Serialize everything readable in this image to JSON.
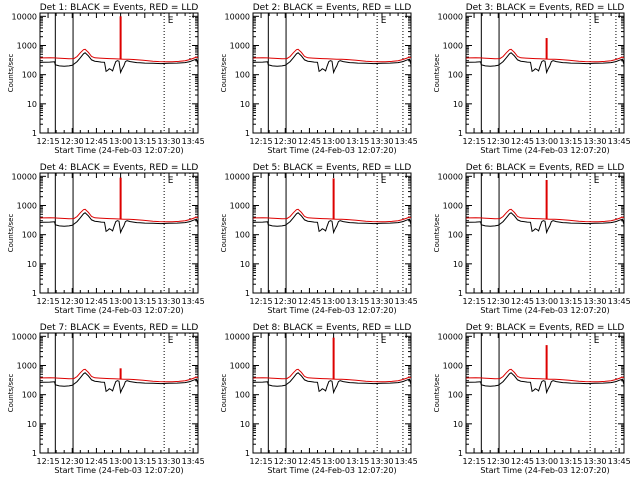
{
  "page": {
    "background": "#ffffff",
    "line_color": "#000000"
  },
  "chart_data": {
    "type": "line",
    "layout": "3x3 grid",
    "xlabel": "Start Time (24-Feb-03 12:07:20)",
    "ylabel": "Counts/sec",
    "x_ticks": [
      "12:15",
      "12:30",
      "12:45",
      "13:00",
      "13:15",
      "13:30",
      "13:45"
    ],
    "x_tick_minutes": [
      15,
      30,
      45,
      60,
      75,
      90,
      105
    ],
    "xlim_minutes": [
      10,
      108
    ],
    "y_ticks": [
      "1",
      "10",
      "100",
      "1000",
      "10000"
    ],
    "y_scale": "log",
    "ylim": [
      1,
      13000
    ],
    "solid_markers_minutes": [
      19.5,
      30.5
    ],
    "dotted_markers_minutes": [
      87,
      103
    ],
    "marker_label": "E",
    "marker_label_minutes": 91,
    "series_colors": {
      "BLACK": "#000000",
      "RED": "#dd0000"
    },
    "spike_minutes": 60,
    "panels": [
      {
        "title": "Det 1: BLACK = Events, RED = LLD",
        "spike_peak": 10000
      },
      {
        "title": "Det 2: BLACK = Events, RED = LLD",
        "spike_peak": null
      },
      {
        "title": "Det 3: BLACK = Events, RED = LLD",
        "spike_peak": 1800
      },
      {
        "title": "Det 4: BLACK = Events, RED = LLD",
        "spike_peak": 9000
      },
      {
        "title": "Det 5: BLACK = Events, RED = LLD",
        "spike_peak": 8500
      },
      {
        "title": "Det 6: BLACK = Events, RED = LLD",
        "spike_peak": 7500
      },
      {
        "title": "Det 7: BLACK = Events, RED = LLD",
        "spike_peak": 800
      },
      {
        "title": "Det 8: BLACK = Events, RED = LLD",
        "spike_peak": 9000
      },
      {
        "title": "Det 9: BLACK = Events, RED = LLD",
        "spike_peak": 5000
      }
    ],
    "series": [
      {
        "name": "BLACK",
        "description": "Events",
        "x": [
          8,
          12,
          16,
          19,
          19.5,
          20,
          22,
          25,
          28,
          30,
          31,
          33,
          35,
          37,
          38,
          40,
          42,
          44,
          46,
          48,
          50,
          51,
          52,
          53,
          54,
          55,
          56,
          57,
          58,
          59,
          60,
          61,
          62,
          63,
          64,
          66,
          68,
          70,
          72,
          75,
          80,
          85,
          90,
          95,
          100,
          103,
          105,
          107,
          108
        ],
        "values": [
          260,
          265,
          270,
          275,
          220,
          215,
          200,
          195,
          200,
          210,
          230,
          280,
          380,
          520,
          560,
          440,
          320,
          290,
          280,
          270,
          265,
          130,
          140,
          160,
          150,
          135,
          200,
          280,
          300,
          290,
          120,
          160,
          200,
          280,
          300,
          280,
          270,
          260,
          255,
          250,
          245,
          240,
          245,
          250,
          260,
          280,
          310,
          340,
          220
        ]
      },
      {
        "name": "RED",
        "description": "LLD",
        "x": [
          8,
          12,
          16,
          19,
          21,
          24,
          28,
          31,
          33,
          35,
          37,
          38,
          40,
          42,
          44,
          47,
          50,
          53,
          56,
          59,
          62,
          65,
          68,
          71,
          74,
          77,
          80,
          84,
          88,
          92,
          96,
          100,
          103,
          105,
          107,
          108
        ],
        "values": [
          370,
          375,
          380,
          375,
          370,
          360,
          350,
          355,
          420,
          560,
          720,
          740,
          580,
          420,
          380,
          370,
          360,
          355,
          350,
          345,
          340,
          335,
          330,
          320,
          310,
          300,
          290,
          280,
          275,
          275,
          285,
          300,
          330,
          360,
          400,
          380
        ]
      }
    ]
  }
}
